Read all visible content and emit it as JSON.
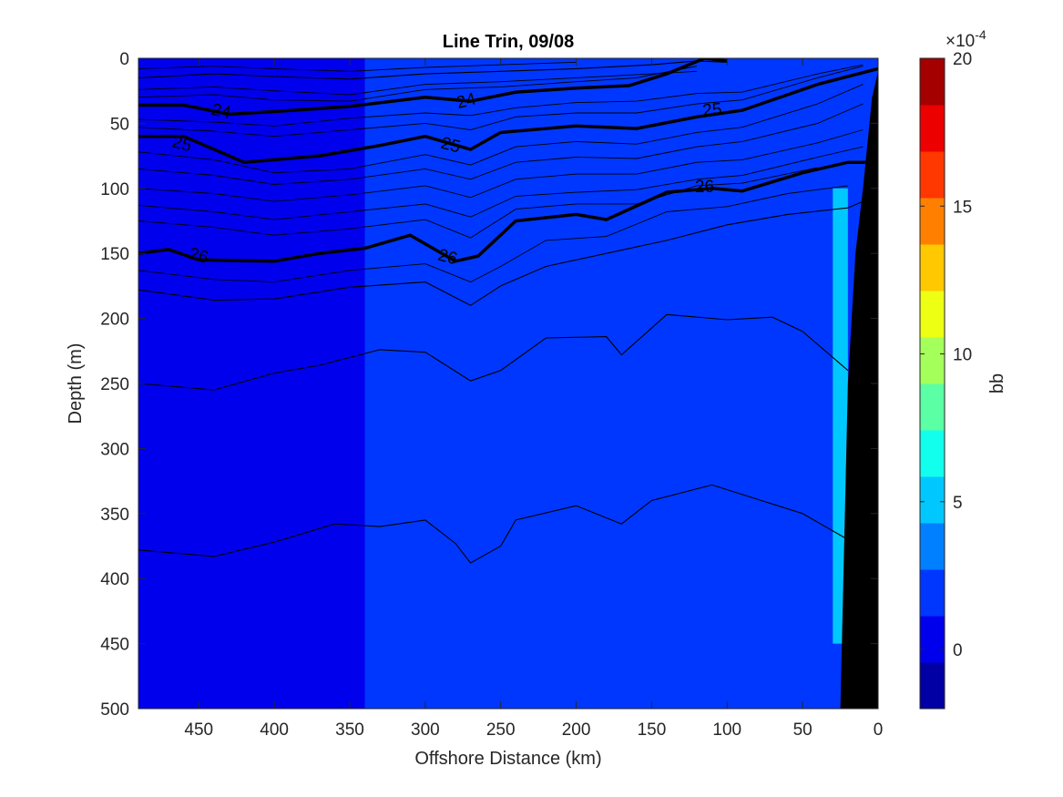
{
  "chart_data": {
    "type": "heatmap",
    "title": "Line Trin, 09/08",
    "xlabel": "Offshore Distance (km)",
    "ylabel": "Depth (m)",
    "xlim": [
      490,
      0
    ],
    "ylim": [
      0,
      500
    ],
    "x_reversed": true,
    "y_reversed": true,
    "x_ticks": [
      450,
      400,
      350,
      300,
      250,
      200,
      150,
      100,
      50,
      0
    ],
    "x_tick_labels": [
      "450",
      "400",
      "350",
      "300",
      "250",
      "200",
      "150",
      "100",
      "50",
      "0"
    ],
    "y_ticks": [
      0,
      50,
      100,
      150,
      200,
      250,
      300,
      350,
      400,
      450,
      500
    ],
    "y_tick_labels": [
      "0",
      "50",
      "100",
      "150",
      "200",
      "250",
      "300",
      "350",
      "400",
      "450",
      "500"
    ],
    "colorbar": {
      "label": "bb",
      "exponent_label": "×10",
      "exponent_power": "-4",
      "clim": [
        -2,
        20
      ],
      "ticks": [
        0,
        5,
        10,
        15,
        20
      ],
      "tick_labels": [
        "0",
        "5",
        "10",
        "15",
        "20"
      ],
      "colormap": "jet"
    },
    "background_field": {
      "typical_value": 1.5,
      "zones": [
        {
          "x_range": [
            490,
            340
          ],
          "depth_range": [
            0,
            500
          ],
          "value": 1.0
        },
        {
          "x_range": [
            340,
            160
          ],
          "depth_range": [
            150,
            500
          ],
          "value": 1.8
        },
        {
          "x_range": [
            160,
            30
          ],
          "depth_range": [
            100,
            500
          ],
          "value": 2.5
        },
        {
          "x_range": [
            30,
            20
          ],
          "depth_range": [
            100,
            450
          ],
          "value": 5.5
        }
      ]
    },
    "seafloor": {
      "color": "#000000",
      "boundary": [
        [
          25,
          500
        ],
        [
          23,
          400
        ],
        [
          20,
          250
        ],
        [
          15,
          150
        ],
        [
          10,
          100
        ],
        [
          4,
          30
        ],
        [
          0,
          10
        ],
        [
          0,
          500
        ]
      ]
    },
    "density_contours": [
      {
        "level": "",
        "bold": false,
        "points": [
          [
            490,
            15
          ],
          [
            440,
            12
          ],
          [
            400,
            14
          ],
          [
            350,
            16
          ],
          [
            300,
            12
          ],
          [
            250,
            10
          ],
          [
            200,
            8
          ],
          [
            150,
            5
          ],
          [
            120,
            2
          ],
          [
            100,
            3
          ]
        ]
      },
      {
        "level": "24",
        "bold": true,
        "points": [
          [
            490,
            36
          ],
          [
            460,
            36
          ],
          [
            430,
            43
          ],
          [
            400,
            41
          ],
          [
            350,
            37
          ],
          [
            300,
            30
          ],
          [
            270,
            33
          ],
          [
            240,
            26
          ],
          [
            200,
            23
          ],
          [
            165,
            21
          ],
          [
            140,
            12
          ],
          [
            115,
            0
          ],
          [
            100,
            2
          ]
        ]
      },
      {
        "level": "25",
        "bold": true,
        "points": [
          [
            490,
            60
          ],
          [
            460,
            60
          ],
          [
            420,
            80
          ],
          [
            370,
            75
          ],
          [
            330,
            67
          ],
          [
            300,
            60
          ],
          [
            270,
            70
          ],
          [
            250,
            57
          ],
          [
            200,
            52
          ],
          [
            160,
            54
          ],
          [
            120,
            45
          ],
          [
            90,
            40
          ],
          [
            40,
            20
          ],
          [
            0,
            8
          ]
        ]
      },
      {
        "level": "26",
        "bold": true,
        "points": [
          [
            490,
            150
          ],
          [
            470,
            147
          ],
          [
            450,
            155
          ],
          [
            400,
            156
          ],
          [
            370,
            150
          ],
          [
            340,
            146
          ],
          [
            310,
            136
          ],
          [
            280,
            156
          ],
          [
            265,
            152
          ],
          [
            240,
            125
          ],
          [
            200,
            120
          ],
          [
            180,
            124
          ],
          [
            140,
            103
          ],
          [
            110,
            100
          ],
          [
            90,
            102
          ],
          [
            50,
            88
          ],
          [
            20,
            80
          ],
          [
            8,
            80
          ]
        ]
      },
      {
        "level": "",
        "bold": false,
        "points": [
          [
            490,
            178
          ],
          [
            440,
            186
          ],
          [
            400,
            185
          ],
          [
            350,
            176
          ],
          [
            300,
            172
          ],
          [
            270,
            190
          ],
          [
            250,
            175
          ],
          [
            220,
            160
          ],
          [
            180,
            150
          ],
          [
            140,
            140
          ],
          [
            100,
            128
          ],
          [
            60,
            120
          ],
          [
            20,
            115
          ],
          [
            10,
            110
          ]
        ]
      },
      {
        "level": "",
        "bold": false,
        "points": [
          [
            490,
            250
          ],
          [
            440,
            255
          ],
          [
            400,
            242
          ],
          [
            370,
            236
          ],
          [
            330,
            224
          ],
          [
            300,
            226
          ],
          [
            270,
            248
          ],
          [
            250,
            240
          ],
          [
            220,
            215
          ],
          [
            180,
            214
          ],
          [
            170,
            228
          ],
          [
            140,
            197
          ],
          [
            100,
            201
          ],
          [
            70,
            199
          ],
          [
            50,
            210
          ],
          [
            20,
            240
          ]
        ]
      },
      {
        "level": "",
        "bold": false,
        "points": [
          [
            490,
            378
          ],
          [
            440,
            383
          ],
          [
            400,
            372
          ],
          [
            360,
            358
          ],
          [
            330,
            360
          ],
          [
            300,
            355
          ],
          [
            280,
            373
          ],
          [
            270,
            388
          ],
          [
            250,
            375
          ],
          [
            240,
            355
          ],
          [
            200,
            344
          ],
          [
            170,
            358
          ],
          [
            150,
            340
          ],
          [
            110,
            328
          ],
          [
            50,
            350
          ],
          [
            20,
            370
          ]
        ]
      }
    ],
    "thin_contours": [
      [
        [
          490,
          8
        ],
        [
          440,
          6
        ],
        [
          400,
          8
        ],
        [
          350,
          10
        ],
        [
          300,
          7
        ],
        [
          250,
          5
        ],
        [
          200,
          3
        ]
      ],
      [
        [
          490,
          24
        ],
        [
          440,
          22
        ],
        [
          400,
          25
        ],
        [
          350,
          28
        ],
        [
          300,
          20
        ],
        [
          250,
          18
        ],
        [
          200,
          15
        ],
        [
          150,
          12
        ],
        [
          120,
          10
        ]
      ],
      [
        [
          490,
          30
        ],
        [
          440,
          28
        ],
        [
          400,
          32
        ],
        [
          350,
          33
        ],
        [
          300,
          24
        ],
        [
          250,
          22
        ],
        [
          200,
          18
        ],
        [
          160,
          15
        ],
        [
          120,
          6
        ]
      ],
      [
        [
          490,
          47
        ],
        [
          440,
          49
        ],
        [
          400,
          52
        ],
        [
          350,
          46
        ],
        [
          300,
          42
        ],
        [
          270,
          44
        ],
        [
          240,
          38
        ],
        [
          200,
          34
        ],
        [
          160,
          33
        ],
        [
          120,
          27
        ],
        [
          90,
          26
        ],
        [
          40,
          12
        ],
        [
          10,
          5
        ]
      ],
      [
        [
          490,
          53
        ],
        [
          440,
          56
        ],
        [
          400,
          60
        ],
        [
          350,
          55
        ],
        [
          300,
          50
        ],
        [
          270,
          55
        ],
        [
          240,
          45
        ],
        [
          200,
          42
        ],
        [
          160,
          42
        ],
        [
          120,
          35
        ],
        [
          90,
          32
        ],
        [
          40,
          15
        ],
        [
          10,
          6
        ]
      ],
      [
        [
          490,
          72
        ],
        [
          440,
          78
        ],
        [
          400,
          88
        ],
        [
          350,
          85
        ],
        [
          300,
          74
        ],
        [
          270,
          82
        ],
        [
          240,
          68
        ],
        [
          200,
          64
        ],
        [
          160,
          66
        ],
        [
          120,
          57
        ],
        [
          90,
          53
        ],
        [
          40,
          35
        ],
        [
          10,
          20
        ]
      ],
      [
        [
          490,
          85
        ],
        [
          440,
          90
        ],
        [
          400,
          97
        ],
        [
          350,
          93
        ],
        [
          300,
          85
        ],
        [
          270,
          93
        ],
        [
          240,
          80
        ],
        [
          200,
          76
        ],
        [
          160,
          77
        ],
        [
          120,
          68
        ],
        [
          90,
          64
        ],
        [
          40,
          50
        ],
        [
          10,
          35
        ]
      ],
      [
        [
          490,
          100
        ],
        [
          440,
          104
        ],
        [
          400,
          110
        ],
        [
          350,
          105
        ],
        [
          300,
          98
        ],
        [
          270,
          107
        ],
        [
          240,
          93
        ],
        [
          200,
          89
        ],
        [
          160,
          89
        ],
        [
          120,
          80
        ],
        [
          90,
          78
        ],
        [
          40,
          65
        ],
        [
          10,
          55
        ]
      ],
      [
        [
          490,
          113
        ],
        [
          440,
          118
        ],
        [
          400,
          124
        ],
        [
          350,
          118
        ],
        [
          300,
          112
        ],
        [
          270,
          122
        ],
        [
          240,
          106
        ],
        [
          200,
          103
        ],
        [
          160,
          101
        ],
        [
          120,
          93
        ],
        [
          90,
          90
        ],
        [
          40,
          76
        ],
        [
          10,
          68
        ]
      ],
      [
        [
          490,
          125
        ],
        [
          440,
          130
        ],
        [
          400,
          136
        ],
        [
          350,
          131
        ],
        [
          300,
          124
        ],
        [
          270,
          138
        ],
        [
          240,
          116
        ],
        [
          200,
          112
        ],
        [
          160,
          112
        ],
        [
          120,
          98
        ],
        [
          90,
          96
        ],
        [
          40,
          84
        ]
      ],
      [
        [
          490,
          163
        ],
        [
          440,
          170
        ],
        [
          400,
          172
        ],
        [
          350,
          163
        ],
        [
          300,
          158
        ],
        [
          270,
          172
        ],
        [
          250,
          160
        ],
        [
          220,
          140
        ],
        [
          180,
          137
        ],
        [
          140,
          118
        ],
        [
          100,
          114
        ],
        [
          60,
          104
        ],
        [
          20,
          98
        ]
      ]
    ],
    "contour_labels": [
      {
        "text": "24",
        "x": 435,
        "depth": 40,
        "rotation": 12
      },
      {
        "text": "24",
        "x": 273,
        "depth": 32,
        "rotation": -15
      },
      {
        "text": "25",
        "x": 461,
        "depth": 65,
        "rotation": 15
      },
      {
        "text": "25",
        "x": 283,
        "depth": 66,
        "rotation": 15
      },
      {
        "text": "25",
        "x": 110,
        "depth": 39,
        "rotation": -5
      },
      {
        "text": "26",
        "x": 450,
        "depth": 151,
        "rotation": 15
      },
      {
        "text": "26",
        "x": 285,
        "depth": 152,
        "rotation": 15
      },
      {
        "text": "26",
        "x": 115,
        "depth": 98,
        "rotation": 0
      }
    ]
  }
}
